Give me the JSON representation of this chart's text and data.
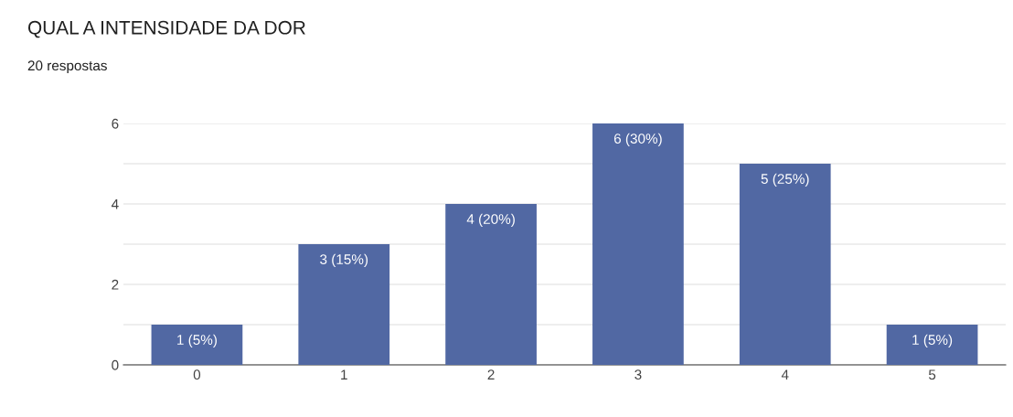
{
  "chart_data": {
    "type": "bar",
    "title": "QUAL A INTENSIDADE DA DOR",
    "subtitle": "20 respostas",
    "categories": [
      "0",
      "1",
      "2",
      "3",
      "4",
      "5"
    ],
    "values": [
      1,
      3,
      4,
      6,
      5,
      1
    ],
    "color": "#5168a3",
    "value_labels": [
      "1 (5%)",
      "3 (15%)",
      "4 (20%)",
      "6 (30%)",
      "5 (25%)",
      "1 (5%)"
    ],
    "ylim": [
      0,
      6
    ],
    "yticks": [
      0,
      {
        "value": 1,
        "label": null
      },
      2,
      {
        "value": 3,
        "label": null
      },
      4,
      {
        "value": 5,
        "label": null
      },
      6
    ],
    "grid": "y",
    "legend": false
  }
}
